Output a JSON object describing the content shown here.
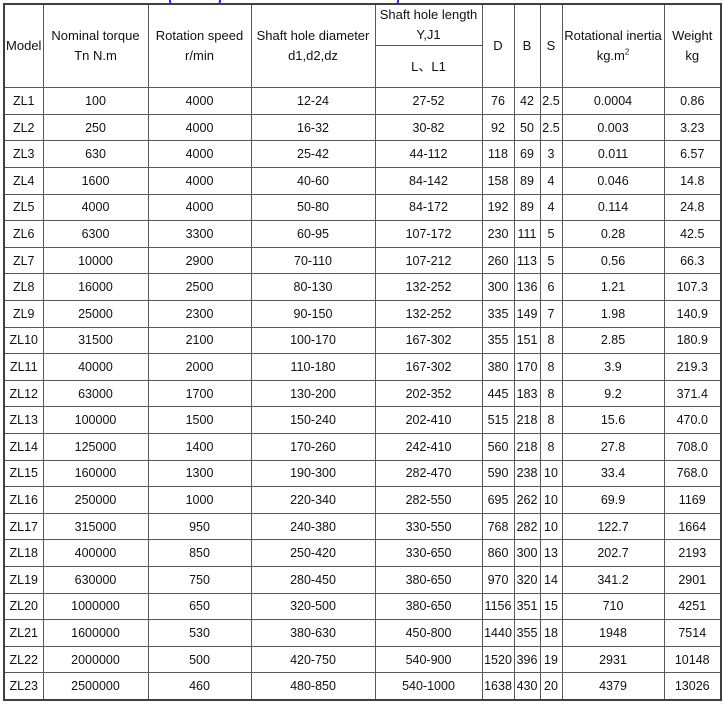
{
  "page": {
    "clipped_title_color": "#2a2af0"
  },
  "table": {
    "columns": [
      {
        "id": "model",
        "label_lines": [
          "Model"
        ]
      },
      {
        "id": "nominal-torque",
        "label_lines": [
          "Nominal torque",
          "Tn N.m"
        ]
      },
      {
        "id": "rotation-speed",
        "label_lines": [
          "Rotation speed",
          "r/min"
        ]
      },
      {
        "id": "shaft-hole-diameter",
        "label_lines": [
          "Shaft hole diameter",
          "d1,d2,dz"
        ]
      },
      {
        "id": "shaft-hole-length",
        "label_lines": [
          "Shaft hole length",
          "Y,J1"
        ],
        "sub_label": "L、L1"
      },
      {
        "id": "d",
        "label_lines": [
          "D"
        ]
      },
      {
        "id": "b",
        "label_lines": [
          "B"
        ]
      },
      {
        "id": "s",
        "label_lines": [
          "S"
        ]
      },
      {
        "id": "rotational-inertia",
        "label_lines": [
          "Rotational inertia",
          "kg.m"
        ],
        "unit_superscript": "2"
      },
      {
        "id": "weight",
        "label_lines": [
          "Weight",
          "kg"
        ]
      }
    ],
    "rows": [
      [
        "ZL1",
        "100",
        "4000",
        "12-24",
        "27-52",
        "76",
        "42",
        "2.5",
        "0.0004",
        "0.86"
      ],
      [
        "ZL2",
        "250",
        "4000",
        "16-32",
        "30-82",
        "92",
        "50",
        "2.5",
        "0.003",
        "3.23"
      ],
      [
        "ZL3",
        "630",
        "4000",
        "25-42",
        "44-112",
        "118",
        "69",
        "3",
        "0.011",
        "6.57"
      ],
      [
        "ZL4",
        "1600",
        "4000",
        "40-60",
        "84-142",
        "158",
        "89",
        "4",
        "0.046",
        "14.8"
      ],
      [
        "ZL5",
        "4000",
        "4000",
        "50-80",
        "84-172",
        "192",
        "89",
        "4",
        "0.114",
        "24.8"
      ],
      [
        "ZL6",
        "6300",
        "3300",
        "60-95",
        "107-172",
        "230",
        "111",
        "5",
        "0.28",
        "42.5"
      ],
      [
        "ZL7",
        "10000",
        "2900",
        "70-110",
        "107-212",
        "260",
        "113",
        "5",
        "0.56",
        "66.3"
      ],
      [
        "ZL8",
        "16000",
        "2500",
        "80-130",
        "132-252",
        "300",
        "136",
        "6",
        "1.21",
        "107.3"
      ],
      [
        "ZL9",
        "25000",
        "2300",
        "90-150",
        "132-252",
        "335",
        "149",
        "7",
        "1.98",
        "140.9"
      ],
      [
        "ZL10",
        "31500",
        "2100",
        "100-170",
        "167-302",
        "355",
        "151",
        "8",
        "2.85",
        "180.9"
      ],
      [
        "ZL11",
        "40000",
        "2000",
        "110-180",
        "167-302",
        "380",
        "170",
        "8",
        "3.9",
        "219.3"
      ],
      [
        "ZL12",
        "63000",
        "1700",
        "130-200",
        "202-352",
        "445",
        "183",
        "8",
        "9.2",
        "371.4"
      ],
      [
        "ZL13",
        "100000",
        "1500",
        "150-240",
        "202-410",
        "515",
        "218",
        "8",
        "15.6",
        "470.0"
      ],
      [
        "ZL14",
        "125000",
        "1400",
        "170-260",
        "242-410",
        "560",
        "218",
        "8",
        "27.8",
        "708.0"
      ],
      [
        "ZL15",
        "160000",
        "1300",
        "190-300",
        "282-470",
        "590",
        "238",
        "10",
        "33.4",
        "768.0"
      ],
      [
        "ZL16",
        "250000",
        "1000",
        "220-340",
        "282-550",
        "695",
        "262",
        "10",
        "69.9",
        "1169"
      ],
      [
        "ZL17",
        "315000",
        "950",
        "240-380",
        "330-550",
        "768",
        "282",
        "10",
        "122.7",
        "1664"
      ],
      [
        "ZL18",
        "400000",
        "850",
        "250-420",
        "330-650",
        "860",
        "300",
        "13",
        "202.7",
        "2193"
      ],
      [
        "ZL19",
        "630000",
        "750",
        "280-450",
        "380-650",
        "970",
        "320",
        "14",
        "341.2",
        "2901"
      ],
      [
        "ZL20",
        "1000000",
        "650",
        "320-500",
        "380-650",
        "1156",
        "351",
        "15",
        "710",
        "4251"
      ],
      [
        "ZL21",
        "1600000",
        "530",
        "380-630",
        "450-800",
        "1440",
        "355",
        "18",
        "1948",
        "7514"
      ],
      [
        "ZL22",
        "2000000",
        "500",
        "420-750",
        "540-900",
        "1520",
        "396",
        "19",
        "2931",
        "10148"
      ],
      [
        "ZL23",
        "2500000",
        "460",
        "480-850",
        "540-1000",
        "1638",
        "430",
        "20",
        "4379",
        "13026"
      ]
    ]
  }
}
